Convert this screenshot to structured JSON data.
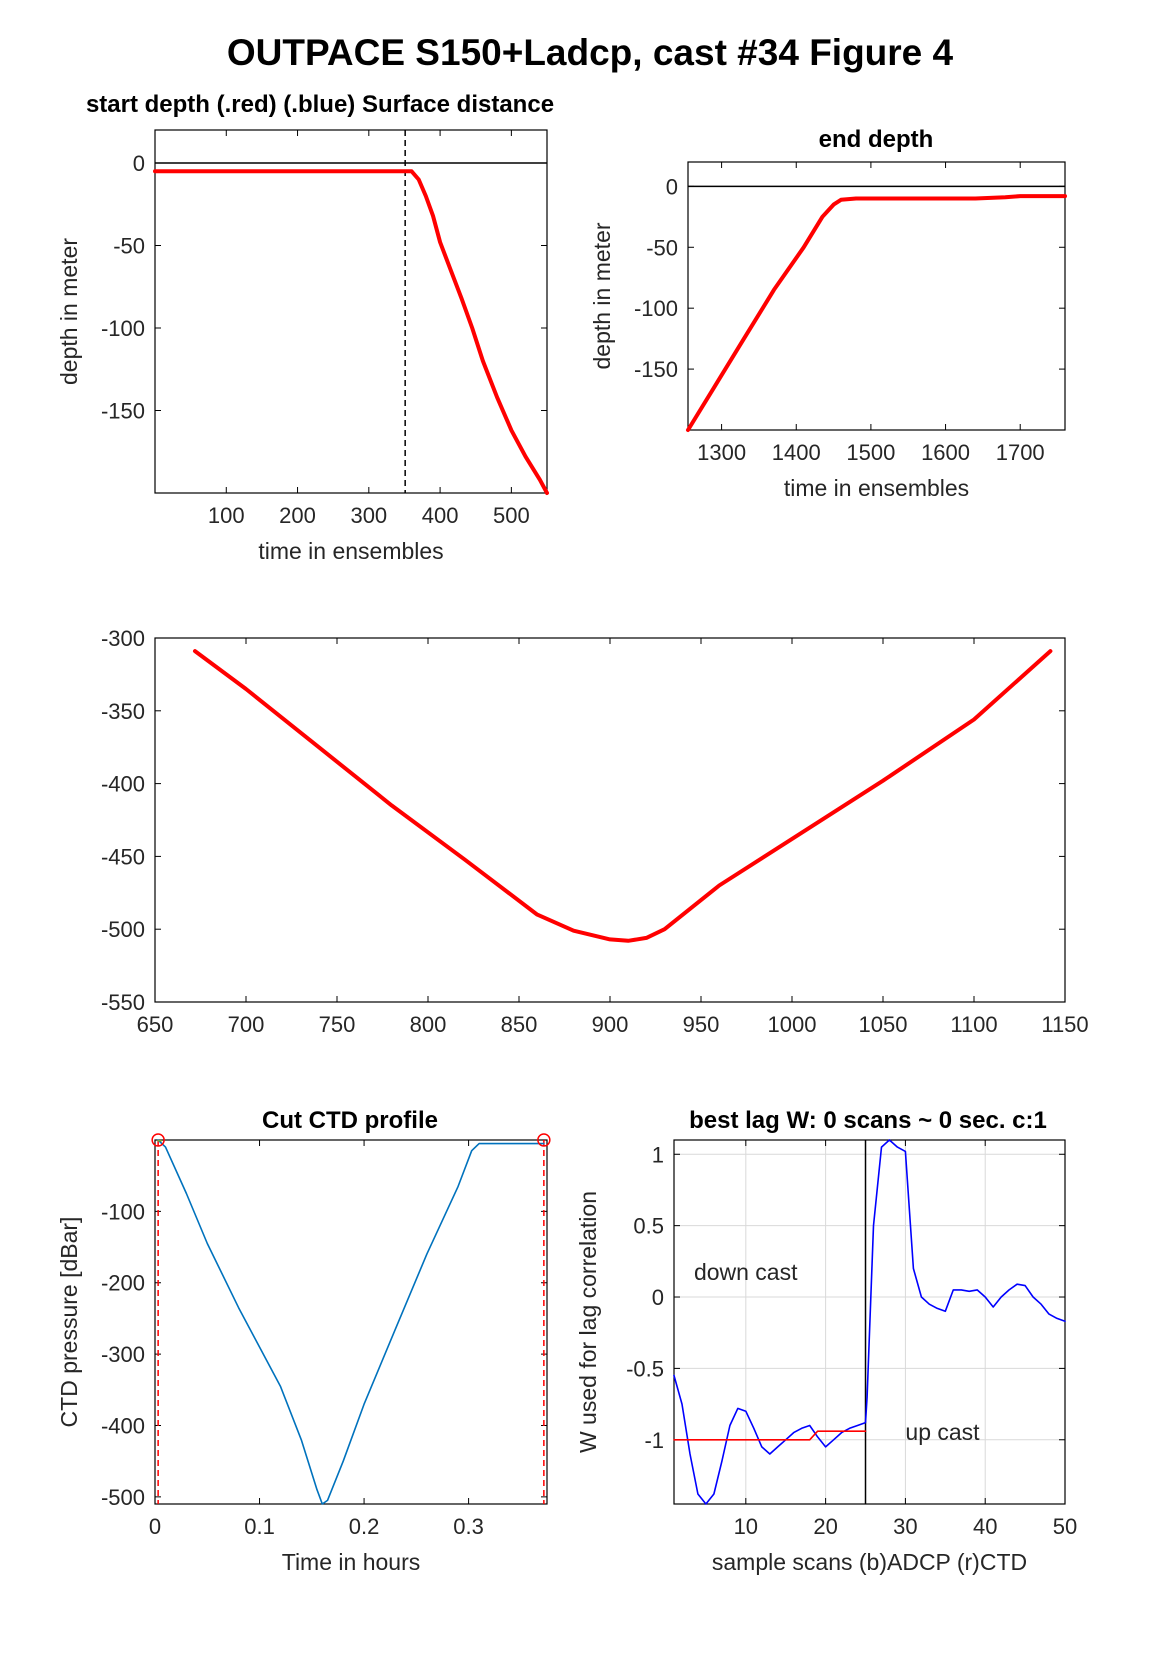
{
  "figure": {
    "title": "OUTPACE S150+Ladcp, cast #34   Figure 4"
  },
  "chart_data": [
    {
      "id": "start_depth",
      "type": "line",
      "title": "start depth (.red) (.blue) Surface distance",
      "xlabel": "time in ensembles",
      "ylabel": "depth in meter",
      "xlim": [
        0,
        550
      ],
      "ylim": [
        -200,
        20
      ],
      "xticks": [
        100,
        200,
        300,
        400,
        500
      ],
      "yticks": [
        0,
        -50,
        -100,
        -150
      ],
      "grid": false,
      "series": [
        {
          "color": "#ff0000",
          "x": [
            0,
            100,
            200,
            300,
            340,
            350,
            355,
            360,
            370,
            380,
            390,
            400,
            415,
            430,
            445,
            460,
            480,
            500,
            520,
            540,
            550
          ],
          "y": [
            -5,
            -5,
            -5,
            -5,
            -5,
            -5,
            -5,
            -5,
            -10,
            -20,
            -32,
            -48,
            -65,
            -82,
            -100,
            -120,
            -142,
            -162,
            -178,
            -192,
            -200
          ]
        }
      ],
      "hlines": [
        {
          "y": 0,
          "color": "#000000",
          "style": "solid"
        }
      ],
      "vlines": [
        {
          "x": 351,
          "color": "#000000",
          "style": "dashed"
        }
      ]
    },
    {
      "id": "end_depth",
      "type": "line",
      "title": "end depth",
      "xlabel": "time in ensembles",
      "ylabel": "depth in meter",
      "xlim": [
        1255,
        1760
      ],
      "ylim": [
        -200,
        20
      ],
      "xticks": [
        1300,
        1400,
        1500,
        1600,
        1700
      ],
      "yticks": [
        0,
        -50,
        -100,
        -150
      ],
      "grid": false,
      "series": [
        {
          "color": "#ff0000",
          "x": [
            1255,
            1290,
            1330,
            1370,
            1410,
            1435,
            1450,
            1460,
            1480,
            1520,
            1560,
            1600,
            1640,
            1680,
            1700,
            1730,
            1760
          ],
          "y": [
            -200,
            -165,
            -125,
            -85,
            -50,
            -25,
            -15,
            -11,
            -10,
            -10,
            -10,
            -10,
            -10,
            -9,
            -8,
            -8,
            -8
          ]
        }
      ],
      "hlines": [
        {
          "y": 0,
          "color": "#000000",
          "style": "solid"
        }
      ],
      "vlines": []
    },
    {
      "id": "bottom_depth",
      "type": "line",
      "title": "",
      "xlabel": "",
      "ylabel": "",
      "xlim": [
        650,
        1150
      ],
      "ylim": [
        -550,
        -300
      ],
      "xticks": [
        650,
        700,
        750,
        800,
        850,
        900,
        950,
        1000,
        1050,
        1100,
        1150
      ],
      "yticks": [
        -300,
        -350,
        -400,
        -450,
        -500,
        -550
      ],
      "grid": false,
      "series": [
        {
          "color": "#ff0000",
          "x": [
            672,
            700,
            740,
            780,
            820,
            860,
            880,
            900,
            910,
            920,
            930,
            960,
            1000,
            1050,
            1100,
            1142
          ],
          "y": [
            -309,
            -335,
            -375,
            -415,
            -452,
            -490,
            -501,
            -507,
            -508,
            -506,
            -500,
            -470,
            -438,
            -398,
            -356,
            -309
          ]
        }
      ],
      "hlines": [],
      "vlines": []
    },
    {
      "id": "cut_ctd",
      "type": "line",
      "title": "Cut CTD profile",
      "xlabel": "Time in hours",
      "ylabel": "CTD pressure [dBar]",
      "xlim": [
        0,
        0.375
      ],
      "ylim": [
        -510,
        0
      ],
      "xticks": [
        0,
        0.1,
        0.2,
        0.3
      ],
      "yticks": [
        -100,
        -200,
        -300,
        -400,
        -500
      ],
      "grid": false,
      "series": [
        {
          "color": "#0072bd",
          "x": [
            0.003,
            0.01,
            0.03,
            0.05,
            0.08,
            0.1,
            0.12,
            0.14,
            0.155,
            0.16,
            0.165,
            0.18,
            0.2,
            0.23,
            0.26,
            0.29,
            0.303,
            0.31,
            0.33,
            0.35,
            0.372
          ],
          "y": [
            0,
            -10,
            -75,
            -145,
            -235,
            -290,
            -345,
            -420,
            -490,
            -510,
            -505,
            -450,
            -370,
            -265,
            -160,
            -65,
            -15,
            -5,
            -5,
            -5,
            -5
          ]
        },
        {
          "color": "#77ac30",
          "x": [
            0.003,
            0.006
          ],
          "y": [
            -1,
            -1
          ]
        }
      ],
      "markers": [
        {
          "x": 0.003,
          "y": 0,
          "color": "#ff0000",
          "shape": "circle"
        },
        {
          "x": 0.372,
          "y": 0,
          "color": "#ff0000",
          "shape": "circle"
        }
      ],
      "hlines": [],
      "vlines": [
        {
          "x": 0.003,
          "color": "#ff0000",
          "style": "dashed"
        },
        {
          "x": 0.372,
          "color": "#ff0000",
          "style": "dashed"
        }
      ]
    },
    {
      "id": "best_lag",
      "type": "line",
      "title": "best lag W: 0 scans ~ 0 sec.  c:1",
      "xlabel": "sample scans (b)ADCP (r)CTD",
      "ylabel": "W used for lag correlation",
      "xlim": [
        1,
        50
      ],
      "ylim": [
        -1.45,
        1.1
      ],
      "xticks": [
        10,
        20,
        30,
        40,
        50
      ],
      "yticks": [
        1,
        0.5,
        0,
        -0.5,
        -1
      ],
      "grid": true,
      "annotations": [
        {
          "text": "down cast",
          "x": 3.5,
          "y": 0.12
        },
        {
          "text": "up cast",
          "x": 30,
          "y": -1.0
        }
      ],
      "series": [
        {
          "color": "#0000ff",
          "x": [
            1,
            2,
            3,
            4,
            5,
            6,
            7,
            8,
            9,
            10,
            11,
            12,
            13,
            14,
            15,
            16,
            17,
            18,
            19,
            20,
            21,
            22,
            23,
            24,
            25,
            25.2,
            26,
            27,
            28,
            29,
            30,
            31,
            32,
            33,
            34,
            35,
            36,
            37,
            38,
            39,
            40,
            41,
            42,
            43,
            44,
            45,
            46,
            47,
            48,
            49,
            50
          ],
          "y": [
            -0.55,
            -0.75,
            -1.1,
            -1.38,
            -1.45,
            -1.38,
            -1.15,
            -0.9,
            -0.78,
            -0.8,
            -0.92,
            -1.05,
            -1.1,
            -1.05,
            -1.0,
            -0.95,
            -0.92,
            -0.9,
            -0.98,
            -1.05,
            -1.0,
            -0.95,
            -0.92,
            -0.9,
            -0.88,
            -0.7,
            0.5,
            1.05,
            1.1,
            1.05,
            1.02,
            0.2,
            0.0,
            -0.05,
            -0.08,
            -0.1,
            0.05,
            0.05,
            0.04,
            0.05,
            0.0,
            -0.07,
            0.0,
            0.05,
            0.09,
            0.08,
            0.0,
            -0.05,
            -0.12,
            -0.15,
            -0.17
          ]
        },
        {
          "color": "#ff0000",
          "x": [
            1,
            5,
            10,
            15,
            18,
            19,
            25
          ],
          "y": [
            -1.0,
            -1.0,
            -1.0,
            -1.0,
            -1.0,
            -0.94,
            -0.94
          ]
        }
      ],
      "hlines": [],
      "vlines": [
        {
          "x": 25,
          "color": "#000000",
          "style": "solid"
        }
      ]
    }
  ]
}
